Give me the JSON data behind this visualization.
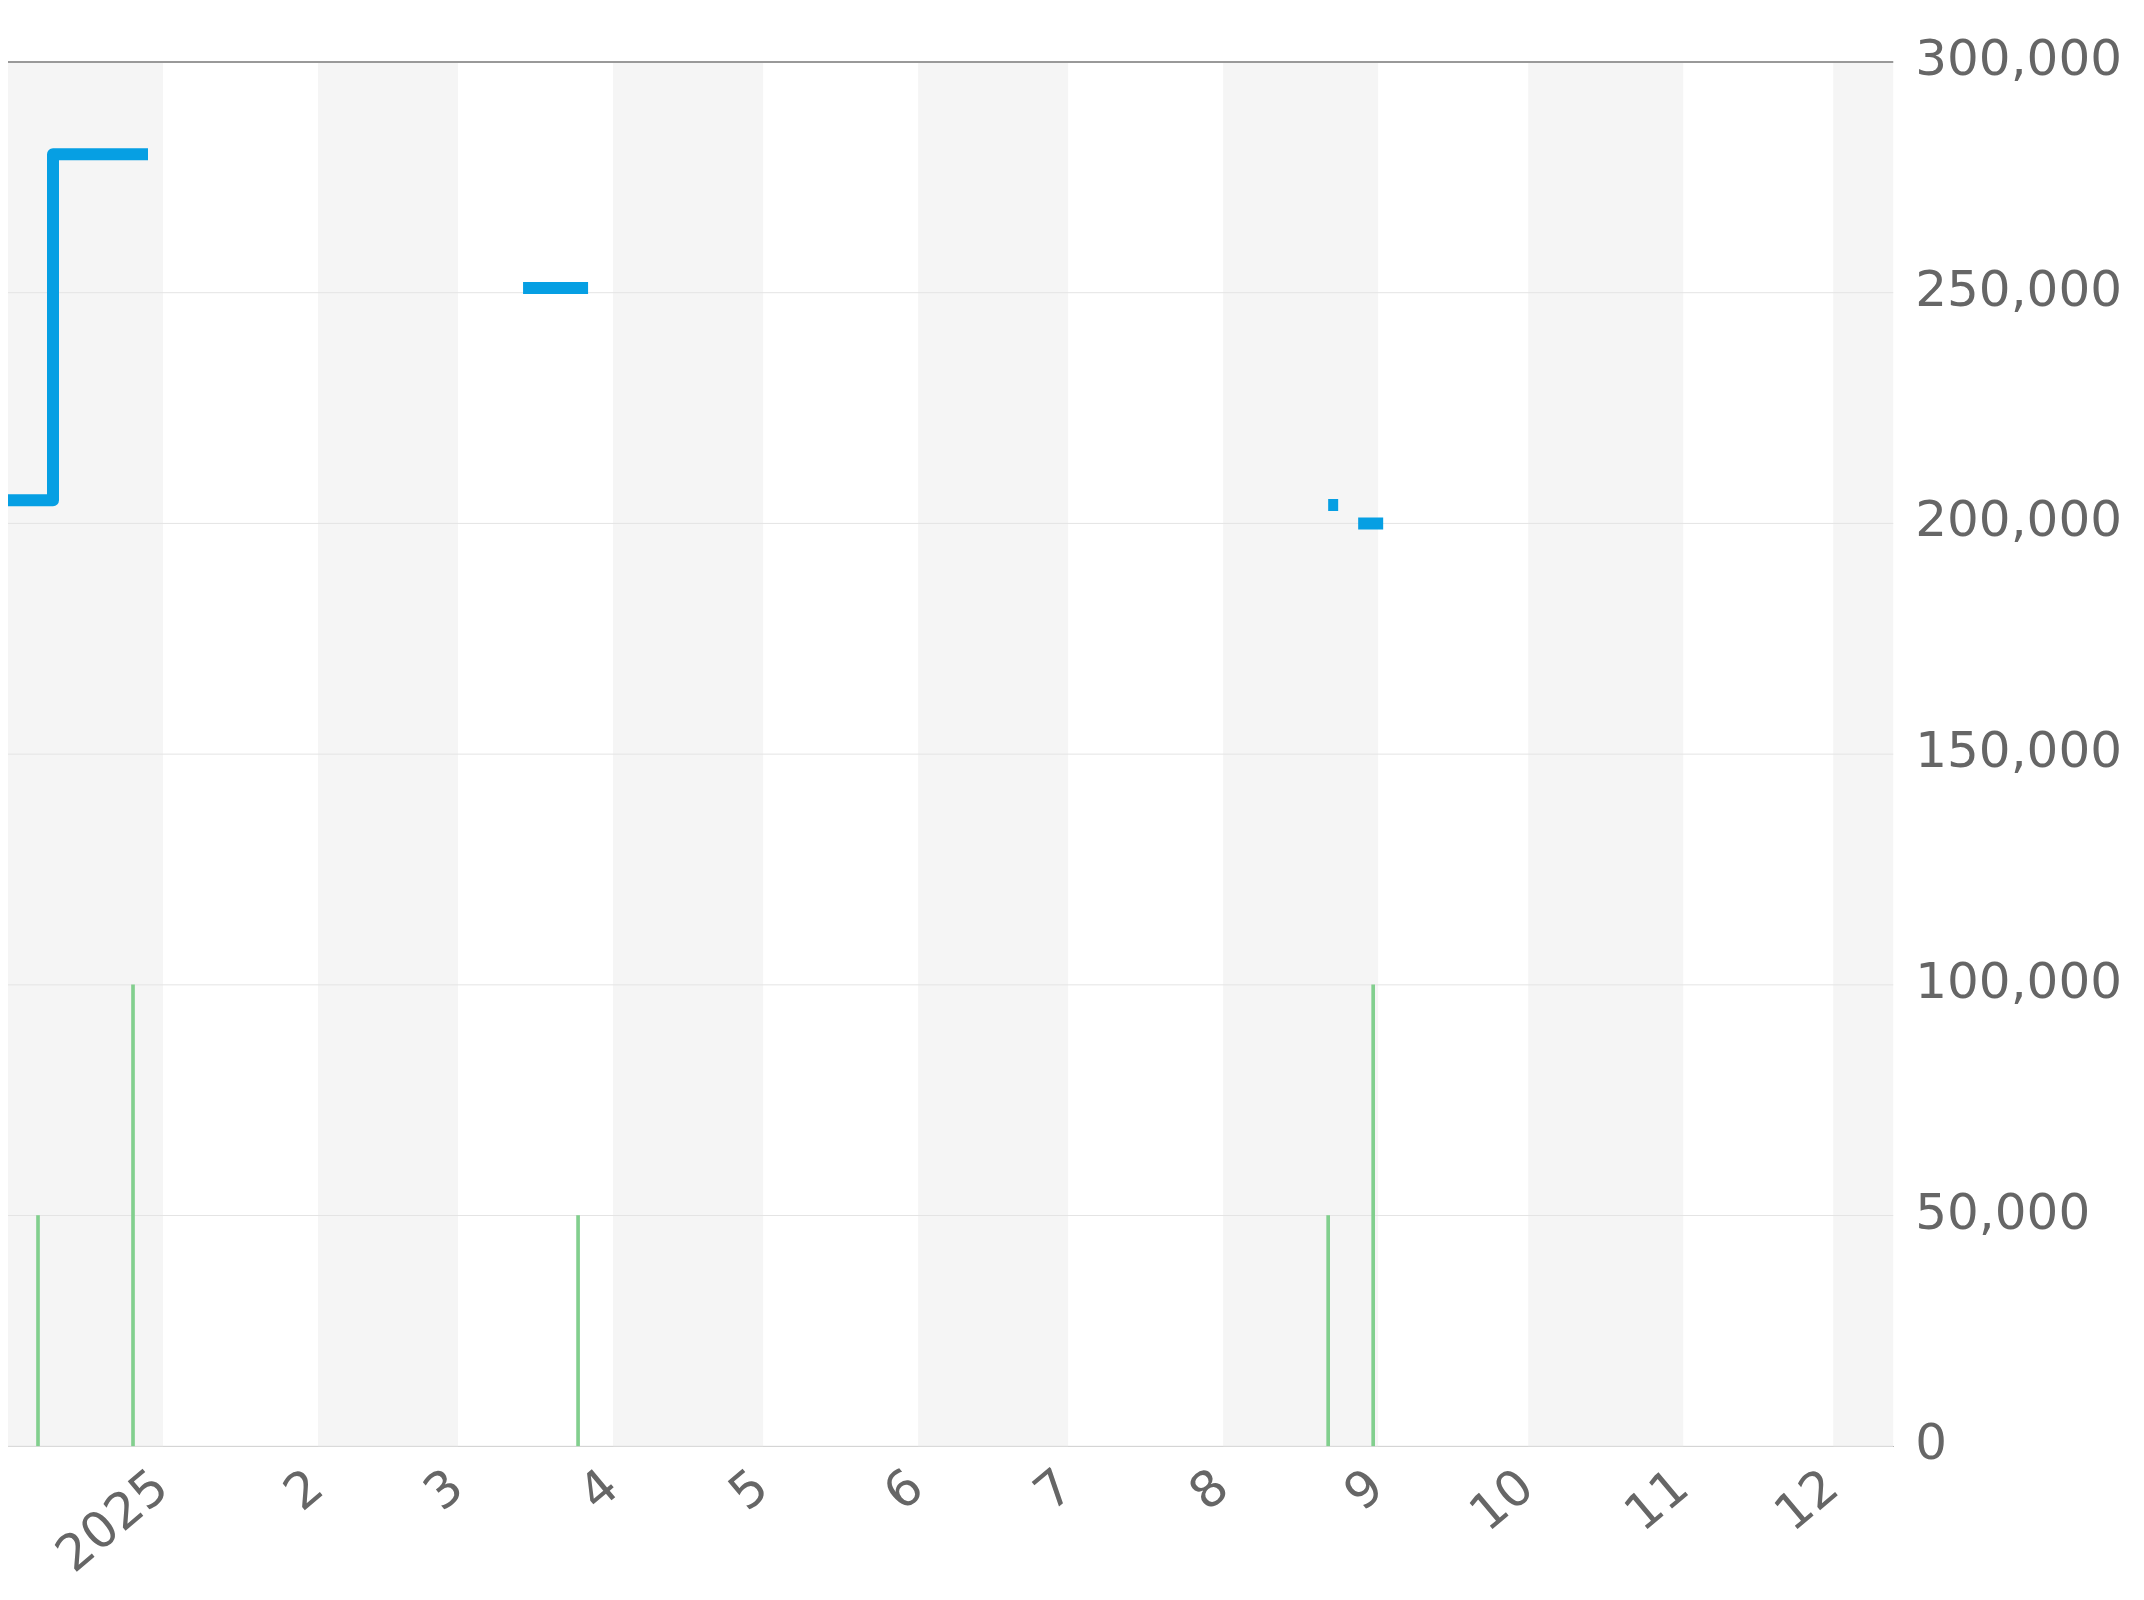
{
  "chart_data": {
    "type": "step",
    "x": [
      "2024-12-01",
      "2024-12-10",
      "2024-12-29",
      "2025-01-02",
      "2025-03-14",
      "2025-03-27",
      "2025-03-28",
      "2025-08-22",
      "2025-08-24",
      "2025-08-25",
      "2025-08-28",
      "2025-09-02"
    ],
    "series": [
      {
        "color": "#069fe3",
        "values": [
          205000,
          280000,
          280000,
          null,
          251000,
          251000,
          null,
          204000,
          204000,
          null,
          200000,
          200000
        ]
      },
      {
        "type": "bar",
        "color": "#82cf8e",
        "x": [
          "2024-12-07",
          "2024-12-26",
          "2025-03-25",
          "2025-08-22",
          "2025-08-31"
        ],
        "values": [
          50000,
          100000,
          50000,
          50000,
          100000
        ]
      }
    ],
    "xlim": [
      "2024-12-01",
      "2025-12-13"
    ],
    "xticks": [
      {
        "value": "2025-01-01",
        "label": "2025"
      },
      {
        "value": "2025-02-01",
        "label": "2"
      },
      {
        "value": "2025-03-01",
        "label": "3"
      },
      {
        "value": "2025-04-01",
        "label": "4"
      },
      {
        "value": "2025-05-01",
        "label": "5"
      },
      {
        "value": "2025-06-01",
        "label": "6"
      },
      {
        "value": "2025-07-01",
        "label": "7"
      },
      {
        "value": "2025-08-01",
        "label": "8"
      },
      {
        "value": "2025-09-01",
        "label": "9"
      },
      {
        "value": "2025-10-01",
        "label": "10"
      },
      {
        "value": "2025-11-01",
        "label": "11"
      },
      {
        "value": "2025-12-01",
        "label": "12"
      }
    ],
    "ylim": [
      0,
      300000
    ],
    "yticks": [
      0,
      {
        "value": 50000,
        "label": "50,000"
      },
      {
        "value": 100000,
        "label": "100,000"
      },
      {
        "value": 150000,
        "label": "150,000"
      },
      {
        "value": 200000,
        "label": "200,000"
      },
      {
        "value": 250000,
        "label": "250,000"
      },
      {
        "value": 300000,
        "label": "300,000"
      }
    ],
    "grid": "y",
    "legend": false,
    "bands": [
      {
        "axis": "x",
        "from": "2024-12-01",
        "to": "2025-01-01",
        "color": "#f5f5f5"
      },
      {
        "axis": "x",
        "from": "2025-02-01",
        "to": "2025-03-01",
        "color": "#f5f5f5"
      },
      {
        "axis": "x",
        "from": "2025-04-01",
        "to": "2025-05-01",
        "color": "#f5f5f5"
      },
      {
        "axis": "x",
        "from": "2025-06-01",
        "to": "2025-07-01",
        "color": "#f5f5f5"
      },
      {
        "axis": "x",
        "from": "2025-08-01",
        "to": "2025-09-01",
        "color": "#f5f5f5"
      },
      {
        "axis": "x",
        "from": "2025-10-01",
        "to": "2025-11-01",
        "color": "#f5f5f5"
      },
      {
        "axis": "x",
        "from": "2025-12-01",
        "to": "2025-12-13",
        "color": "#f5f5f5"
      }
    ]
  }
}
